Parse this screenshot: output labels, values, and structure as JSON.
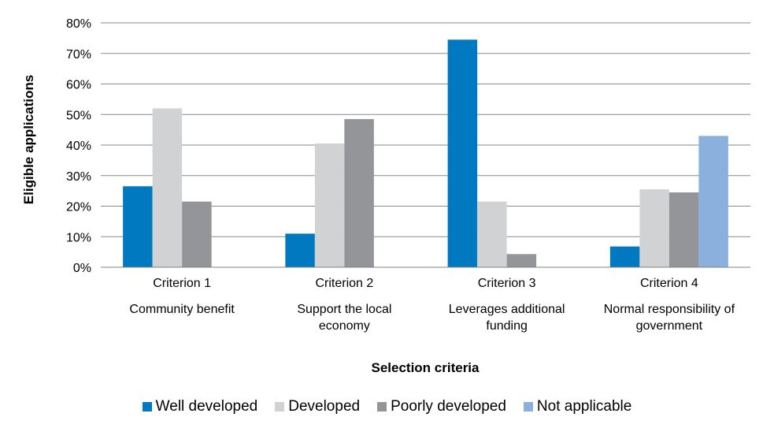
{
  "chart_data": {
    "type": "bar",
    "title": "",
    "xlabel": "Selection criteria",
    "ylabel": "Eligible applications",
    "ylim": [
      0,
      80
    ],
    "y_ticks": [
      "0%",
      "10%",
      "20%",
      "30%",
      "40%",
      "50%",
      "60%",
      "70%",
      "80%"
    ],
    "y_tick_values": [
      0,
      10,
      20,
      30,
      40,
      50,
      60,
      70,
      80
    ],
    "grid": true,
    "legend_position": "bottom",
    "categories": [
      {
        "criterion": "Criterion 1",
        "description": [
          "Community benefit"
        ]
      },
      {
        "criterion": "Criterion 2",
        "description": [
          "Support the local",
          "economy"
        ]
      },
      {
        "criterion": "Criterion 3",
        "description": [
          "Leverages additional",
          "funding"
        ]
      },
      {
        "criterion": "Criterion 4",
        "description": [
          "Normal responsibility of",
          "government"
        ]
      }
    ],
    "series": [
      {
        "name": "Well developed",
        "color": "#0079c1",
        "values": [
          26.5,
          11,
          74.5,
          6.8
        ]
      },
      {
        "name": "Developed",
        "color": "#d0d2d4",
        "values": [
          52,
          40.5,
          21.5,
          25.5
        ]
      },
      {
        "name": "Poorly developed",
        "color": "#949599",
        "values": [
          21.5,
          48.5,
          4.3,
          24.5
        ]
      },
      {
        "name": "Not applicable",
        "color": "#8bb0de",
        "values": [
          0,
          0,
          0,
          43
        ]
      }
    ]
  }
}
